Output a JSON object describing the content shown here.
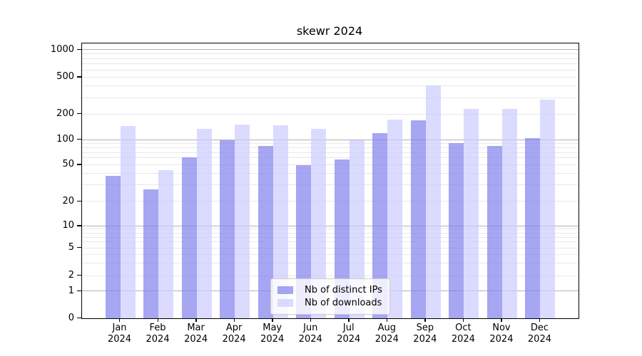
{
  "chart_data": {
    "type": "bar",
    "title": "skewr 2024",
    "categories": [
      "Jan",
      "Feb",
      "Mar",
      "Apr",
      "May",
      "Jun",
      "Jul",
      "Aug",
      "Sep",
      "Oct",
      "Nov",
      "Dec"
    ],
    "x_year_suffix": "2024",
    "series": [
      {
        "name": "Nb of distinct IPs",
        "color": "#8080ee",
        "values": [
          38,
          27,
          62,
          100,
          85,
          50,
          58,
          120,
          170,
          92,
          85,
          105
        ]
      },
      {
        "name": "Nb of downloads",
        "color": "#ccccff",
        "values": [
          145,
          44,
          135,
          152,
          148,
          135,
          100,
          175,
          410,
          230,
          230,
          290
        ]
      }
    ],
    "bar_alpha": 0.7,
    "yscale": "symlog",
    "yticks": [
      0,
      1,
      2,
      5,
      10,
      20,
      50,
      100,
      200,
      500,
      1000
    ],
    "ylim": [
      0,
      1200
    ],
    "xlabel": "",
    "ylabel": "",
    "grid": "horizontal",
    "legend_position": "lower center"
  },
  "style": {
    "major_grid_color": "#b3b3b3",
    "minor_grid_color": "#e8e8e8",
    "axis_color": "#000000",
    "legend_bg": "rgba(255,255,255,0.8)",
    "legend_border": "#cccccc"
  }
}
